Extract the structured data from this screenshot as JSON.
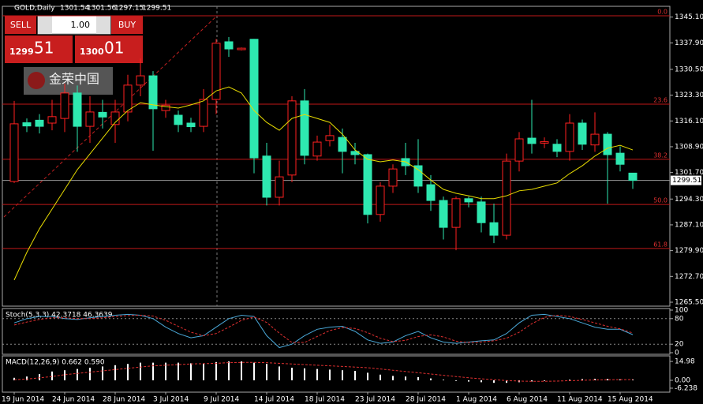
{
  "chart_data": {
    "type": "candlestick",
    "title": "GOLD,Daily",
    "header_values": [
      1301.54,
      1301.56,
      1297.15,
      1299.51
    ],
    "trade_panel": {
      "sell": "SELL",
      "lot": "1.00",
      "buy": "BUY",
      "bid_main": "1299",
      "bid_pips": "51",
      "ask_main": "1300",
      "ask_pips": "01"
    },
    "logo": "金荣中国",
    "categories": [
      "19 Jun 2014",
      null,
      null,
      null,
      "24 Jun 2014",
      null,
      null,
      null,
      "28 Jun 2014",
      null,
      null,
      null,
      "3 Jul 2014",
      null,
      null,
      null,
      "9 Jul 2014",
      null,
      null,
      null,
      "14 Jul 2014",
      null,
      null,
      null,
      "18 Jul 2014",
      null,
      null,
      null,
      "23 Jul 2014",
      null,
      null,
      null,
      "28 Jul 2014",
      null,
      null,
      null,
      "1 Aug 2014",
      null,
      null,
      null,
      "6 Aug 2014",
      null,
      null,
      null,
      "11 Aug 2014",
      null,
      null,
      null,
      "15 Aug 2014",
      null
    ],
    "open": [
      1299.2,
      1315.6,
      1316.3,
      1315.5,
      1316.8,
      1323.9,
      1314.6,
      1318.5,
      1315.1,
      1318.6,
      1326.1,
      1328.7,
      1319,
      1317.7,
      1315.5,
      1314.6,
      1322.1,
      1338.2,
      1336,
      1338.9,
      1306.3,
      1294.8,
      1301,
      1321.7,
      1306.3,
      1310.6,
      1311.5,
      1307.6,
      1306.7,
      1290,
      1297.9,
      1305.6,
      1303.6,
      1298.3,
      1293.9,
      1286.4,
      1294.4,
      1293.5,
      1287.7,
      1284.2,
      1304.9,
      1311.3,
      1309.9,
      1309.6,
      1307.6,
      1315.5,
      1309.4,
      1312.4,
      1307.1,
      1301.54
    ],
    "high": [
      1321.7,
      1316.8,
      1318,
      1322,
      1326.5,
      1326,
      1323,
      1322,
      1322,
      1329,
      1333.5,
      1330,
      1322,
      1319,
      1317,
      1325,
      1339,
      1339.5,
      1336.6,
      1339,
      1310,
      1305,
      1323,
      1325,
      1312,
      1315,
      1314,
      1310,
      1307,
      1299,
      1304,
      1310,
      1311,
      1301,
      1295,
      1295,
      1295,
      1295,
      1293,
      1307,
      1313,
      1322,
      1311.5,
      1311,
      1318,
      1316.5,
      1318.5,
      1313,
      1309,
      1301.56
    ],
    "low": [
      1298.8,
      1313,
      1312.6,
      1313.5,
      1313,
      1307.5,
      1310,
      1314,
      1310,
      1316,
      1323,
      1307.8,
      1317,
      1313,
      1313,
      1313,
      1318,
      1334,
      1335.8,
      1301.5,
      1292.5,
      1292.5,
      1299,
      1304,
      1305,
      1309,
      1301.5,
      1304,
      1287.5,
      1288,
      1296,
      1301,
      1296,
      1291,
      1283,
      1280,
      1292,
      1285,
      1282,
      1283,
      1302,
      1307,
      1308.5,
      1306,
      1305,
      1308,
      1307.5,
      1293,
      1302,
      1297.15
    ],
    "close": [
      1315.3,
      1314.7,
      1314.6,
      1317.3,
      1323.9,
      1314.6,
      1318.6,
      1317.2,
      1318.6,
      1326.1,
      1328.7,
      1319.5,
      1320.5,
      1315.1,
      1314.5,
      1322.1,
      1337.8,
      1336.2,
      1336.4,
      1305.8,
      1294.8,
      1300.5,
      1321.7,
      1306.5,
      1310.2,
      1312,
      1307.6,
      1306.7,
      1290,
      1297.9,
      1302.7,
      1303.6,
      1297.9,
      1293.9,
      1286.4,
      1294.4,
      1293.5,
      1287.7,
      1284.2,
      1304.9,
      1311.1,
      1309.8,
      1310.3,
      1307.6,
      1315.5,
      1309.6,
      1312.4,
      1306.7,
      1304,
      1299.51
    ],
    "up_color": "#ff2020",
    "down_color": "#2ee8b0",
    "ma": {
      "color": "#e8dc00",
      "values": [
        1271.7,
        1279.4,
        1286.0,
        1291.5,
        1297.0,
        1302.5,
        1306.9,
        1311.3,
        1315.7,
        1319.0,
        1321.2,
        1320.6,
        1320.1,
        1319.7,
        1320.6,
        1321.7,
        1324.5,
        1325.6,
        1323.9,
        1319.0,
        1315.7,
        1313.5,
        1316.8,
        1317.9,
        1316.8,
        1315.7,
        1312.4,
        1308.0,
        1305.4,
        1304.7,
        1305.2,
        1304.7,
        1302.5,
        1299.6,
        1297.0,
        1295.9,
        1295.2,
        1294.4,
        1294.4,
        1295.2,
        1296.6,
        1297.0,
        1297.9,
        1298.8,
        1301.4,
        1303.6,
        1306.3,
        1308.5,
        1309.3,
        1308.0
      ]
    },
    "ylim": [
      1264.4,
      1348.1
    ],
    "yticks": [
      {
        "value": 1345.1,
        "label": "1345.10"
      },
      {
        "value": 1337.9,
        "label": "1337.90"
      },
      {
        "value": 1330.5,
        "label": "1330.50"
      },
      {
        "value": 1323.3,
        "label": "1323.30"
      },
      {
        "value": 1316.1,
        "label": "1316.10"
      },
      {
        "value": 1308.9,
        "label": "1308.90"
      },
      {
        "value": 1301.7,
        "label": "1301.70"
      },
      {
        "value": 1294.3,
        "label": "1294.30"
      },
      {
        "value": 1287.1,
        "label": "1287.10"
      },
      {
        "value": 1279.9,
        "label": "1279.90"
      },
      {
        "value": 1272.7,
        "label": "1272.70"
      },
      {
        "value": 1265.5,
        "label": "1265.50"
      }
    ],
    "current_price": 1299.51,
    "fib_levels": [
      {
        "label": "0.0",
        "value": 1345.47
      },
      {
        "label": "23.6",
        "value": 1320.8
      },
      {
        "label": "38.2",
        "value": 1305.4
      },
      {
        "label": "50.0",
        "value": 1292.8
      },
      {
        "label": "61.8",
        "value": 1280.5
      }
    ],
    "stoch": {
      "label": "Stoch(5,3,3) 42.3718 46.3639",
      "ylim": [
        0,
        100
      ],
      "yticks": [
        100,
        80,
        20,
        0
      ],
      "main": {
        "color": "#4aa8d8",
        "values": [
          70,
          80,
          85,
          85,
          80,
          78,
          82,
          85,
          88,
          90,
          88,
          80,
          60,
          45,
          35,
          40,
          60,
          80,
          88,
          85,
          40,
          12,
          20,
          40,
          55,
          60,
          62,
          50,
          30,
          22,
          25,
          40,
          50,
          35,
          25,
          22,
          25,
          28,
          30,
          45,
          70,
          88,
          90,
          85,
          80,
          70,
          60,
          55,
          55,
          42.3718
        ]
      },
      "signal": {
        "color": "#e03030",
        "values": [
          65,
          72,
          78,
          82,
          82,
          80,
          80,
          82,
          85,
          87,
          88,
          86,
          76,
          62,
          48,
          40,
          45,
          60,
          76,
          84,
          71,
          46,
          24,
          24,
          38,
          52,
          59,
          57,
          47,
          34,
          26,
          29,
          38,
          42,
          37,
          27,
          24,
          25,
          28,
          34,
          48,
          68,
          83,
          88,
          85,
          78,
          70,
          62,
          56,
          46.3639
        ]
      }
    },
    "macd": {
      "label": "MACD(12,26,9) 0.662 0.590",
      "ylim": [
        -9.4,
        19.4
      ],
      "yticks": [
        14.98,
        {
          "value": 0,
          "label": "0.00"
        },
        -6.238
      ],
      "histogram": {
        "color": "#ffffff",
        "values": [
          2,
          3,
          5,
          7,
          8,
          9,
          10,
          11,
          12,
          13,
          14,
          14,
          14,
          14,
          13.5,
          13.5,
          14.5,
          15,
          15,
          14,
          13,
          11,
          10,
          9.5,
          9,
          8.5,
          8,
          7.5,
          6,
          4.5,
          3.5,
          3,
          2.5,
          1.5,
          0.5,
          -0.5,
          -1,
          -1.5,
          -2,
          -2,
          -1.5,
          -1,
          -0.5,
          0,
          0.5,
          1,
          1.2,
          1,
          0.8,
          0.662
        ]
      },
      "signal": {
        "color": "#e03030",
        "values": [
          0.5,
          1,
          2,
          3,
          4.5,
          5.5,
          6.5,
          7.5,
          8.5,
          9.5,
          10.5,
          11.5,
          12,
          12.5,
          13,
          13.2,
          13.5,
          14,
          14.2,
          14.2,
          14,
          13.5,
          13,
          12.5,
          12,
          11.5,
          11,
          10.5,
          10,
          9,
          8,
          7,
          6,
          5,
          4,
          3,
          2,
          1.2,
          0.5,
          -0.2,
          -0.6,
          -0.8,
          -0.8,
          -0.6,
          -0.3,
          0,
          0.3,
          0.45,
          0.55,
          0.59
        ]
      }
    }
  }
}
